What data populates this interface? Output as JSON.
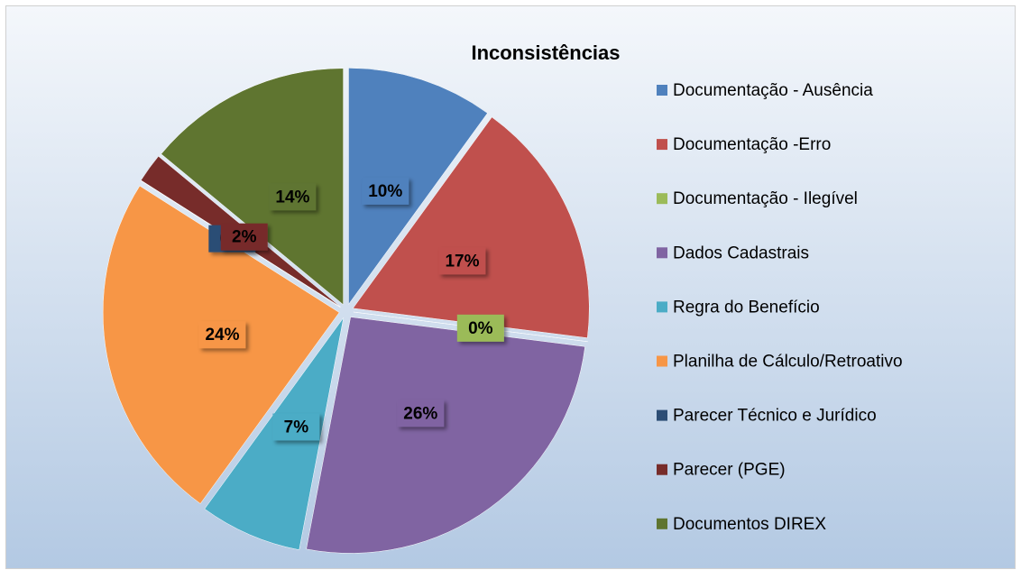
{
  "chart_data": {
    "type": "pie",
    "title": "Inconsistências",
    "categories": [
      "Documentação - Ausência",
      "Documentação -Erro",
      "Documentação -  Ilegível",
      "Dados Cadastrais",
      "Regra do Benefício",
      "Planilha de Cálculo/Retroativo",
      "Parecer Técnico e Jurídico",
      "Parecer (PGE)",
      "Documentos DIREX"
    ],
    "values": [
      10,
      17,
      0,
      26,
      7,
      24,
      0,
      2,
      14
    ],
    "value_labels": [
      "10%",
      "17%",
      "0%",
      "26%",
      "7%",
      "24%",
      "0%",
      "2%",
      "14%"
    ],
    "colors": [
      "#4f81bd",
      "#c0504d",
      "#9bbb59",
      "#8064a2",
      "#4bacc6",
      "#f79646",
      "#2c4d75",
      "#772c2a",
      "#5f7530"
    ],
    "legend": "right"
  }
}
